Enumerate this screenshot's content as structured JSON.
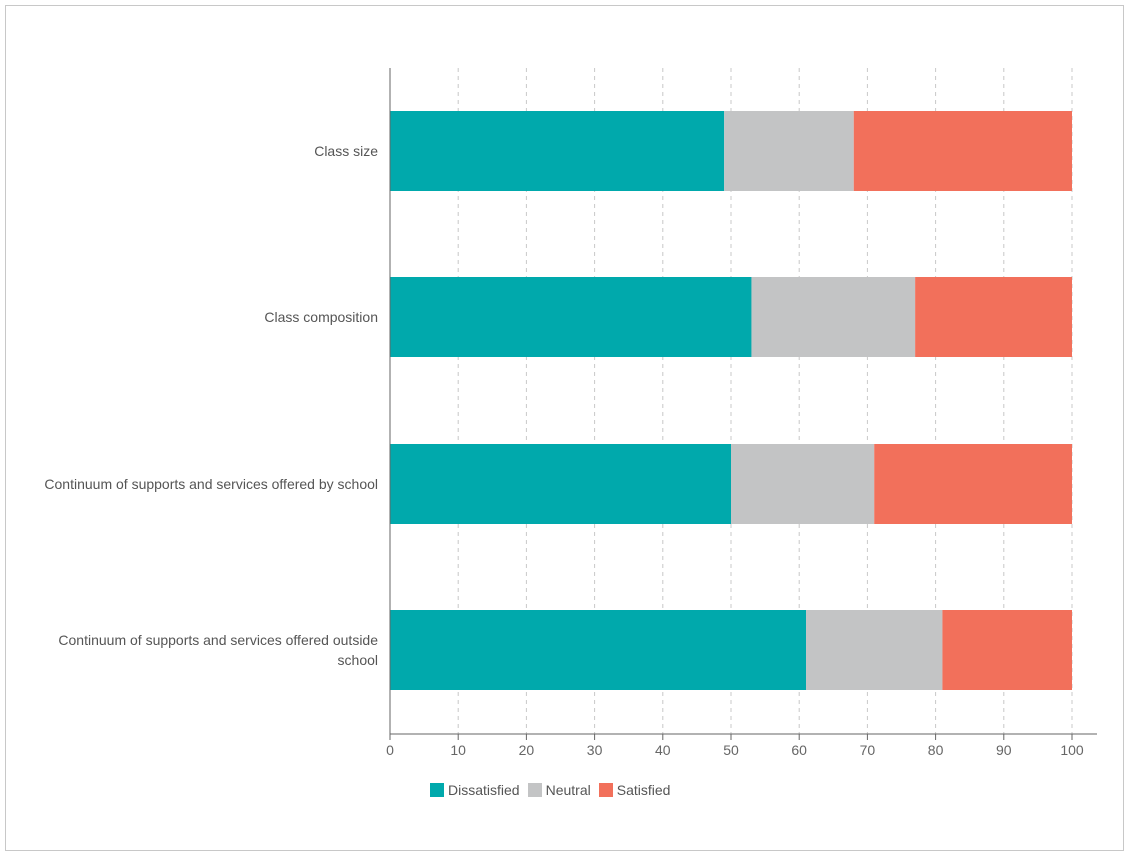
{
  "chart_data": {
    "type": "bar",
    "orientation": "horizontal",
    "stacked": true,
    "categories": [
      "Class size",
      "Class composition",
      "Continuum of supports and services offered by school",
      "Continuum of supports and services offered outside school"
    ],
    "series": [
      {
        "name": "Dissatisfied",
        "color": "#00a9ac",
        "values": [
          49,
          53,
          50,
          61
        ]
      },
      {
        "name": "Neutral",
        "color": "#c3c4c5",
        "values": [
          19,
          24,
          21,
          20
        ]
      },
      {
        "name": "Satisfied",
        "color": "#f2705b",
        "values": [
          32,
          23,
          29,
          19
        ]
      }
    ],
    "xlim": [
      0,
      100
    ],
    "xticks": [
      "0",
      "10",
      "20",
      "30",
      "40",
      "50",
      "60",
      "70",
      "80",
      "90",
      "100"
    ],
    "grid": "vertical dashed",
    "legend_position": "bottom"
  }
}
